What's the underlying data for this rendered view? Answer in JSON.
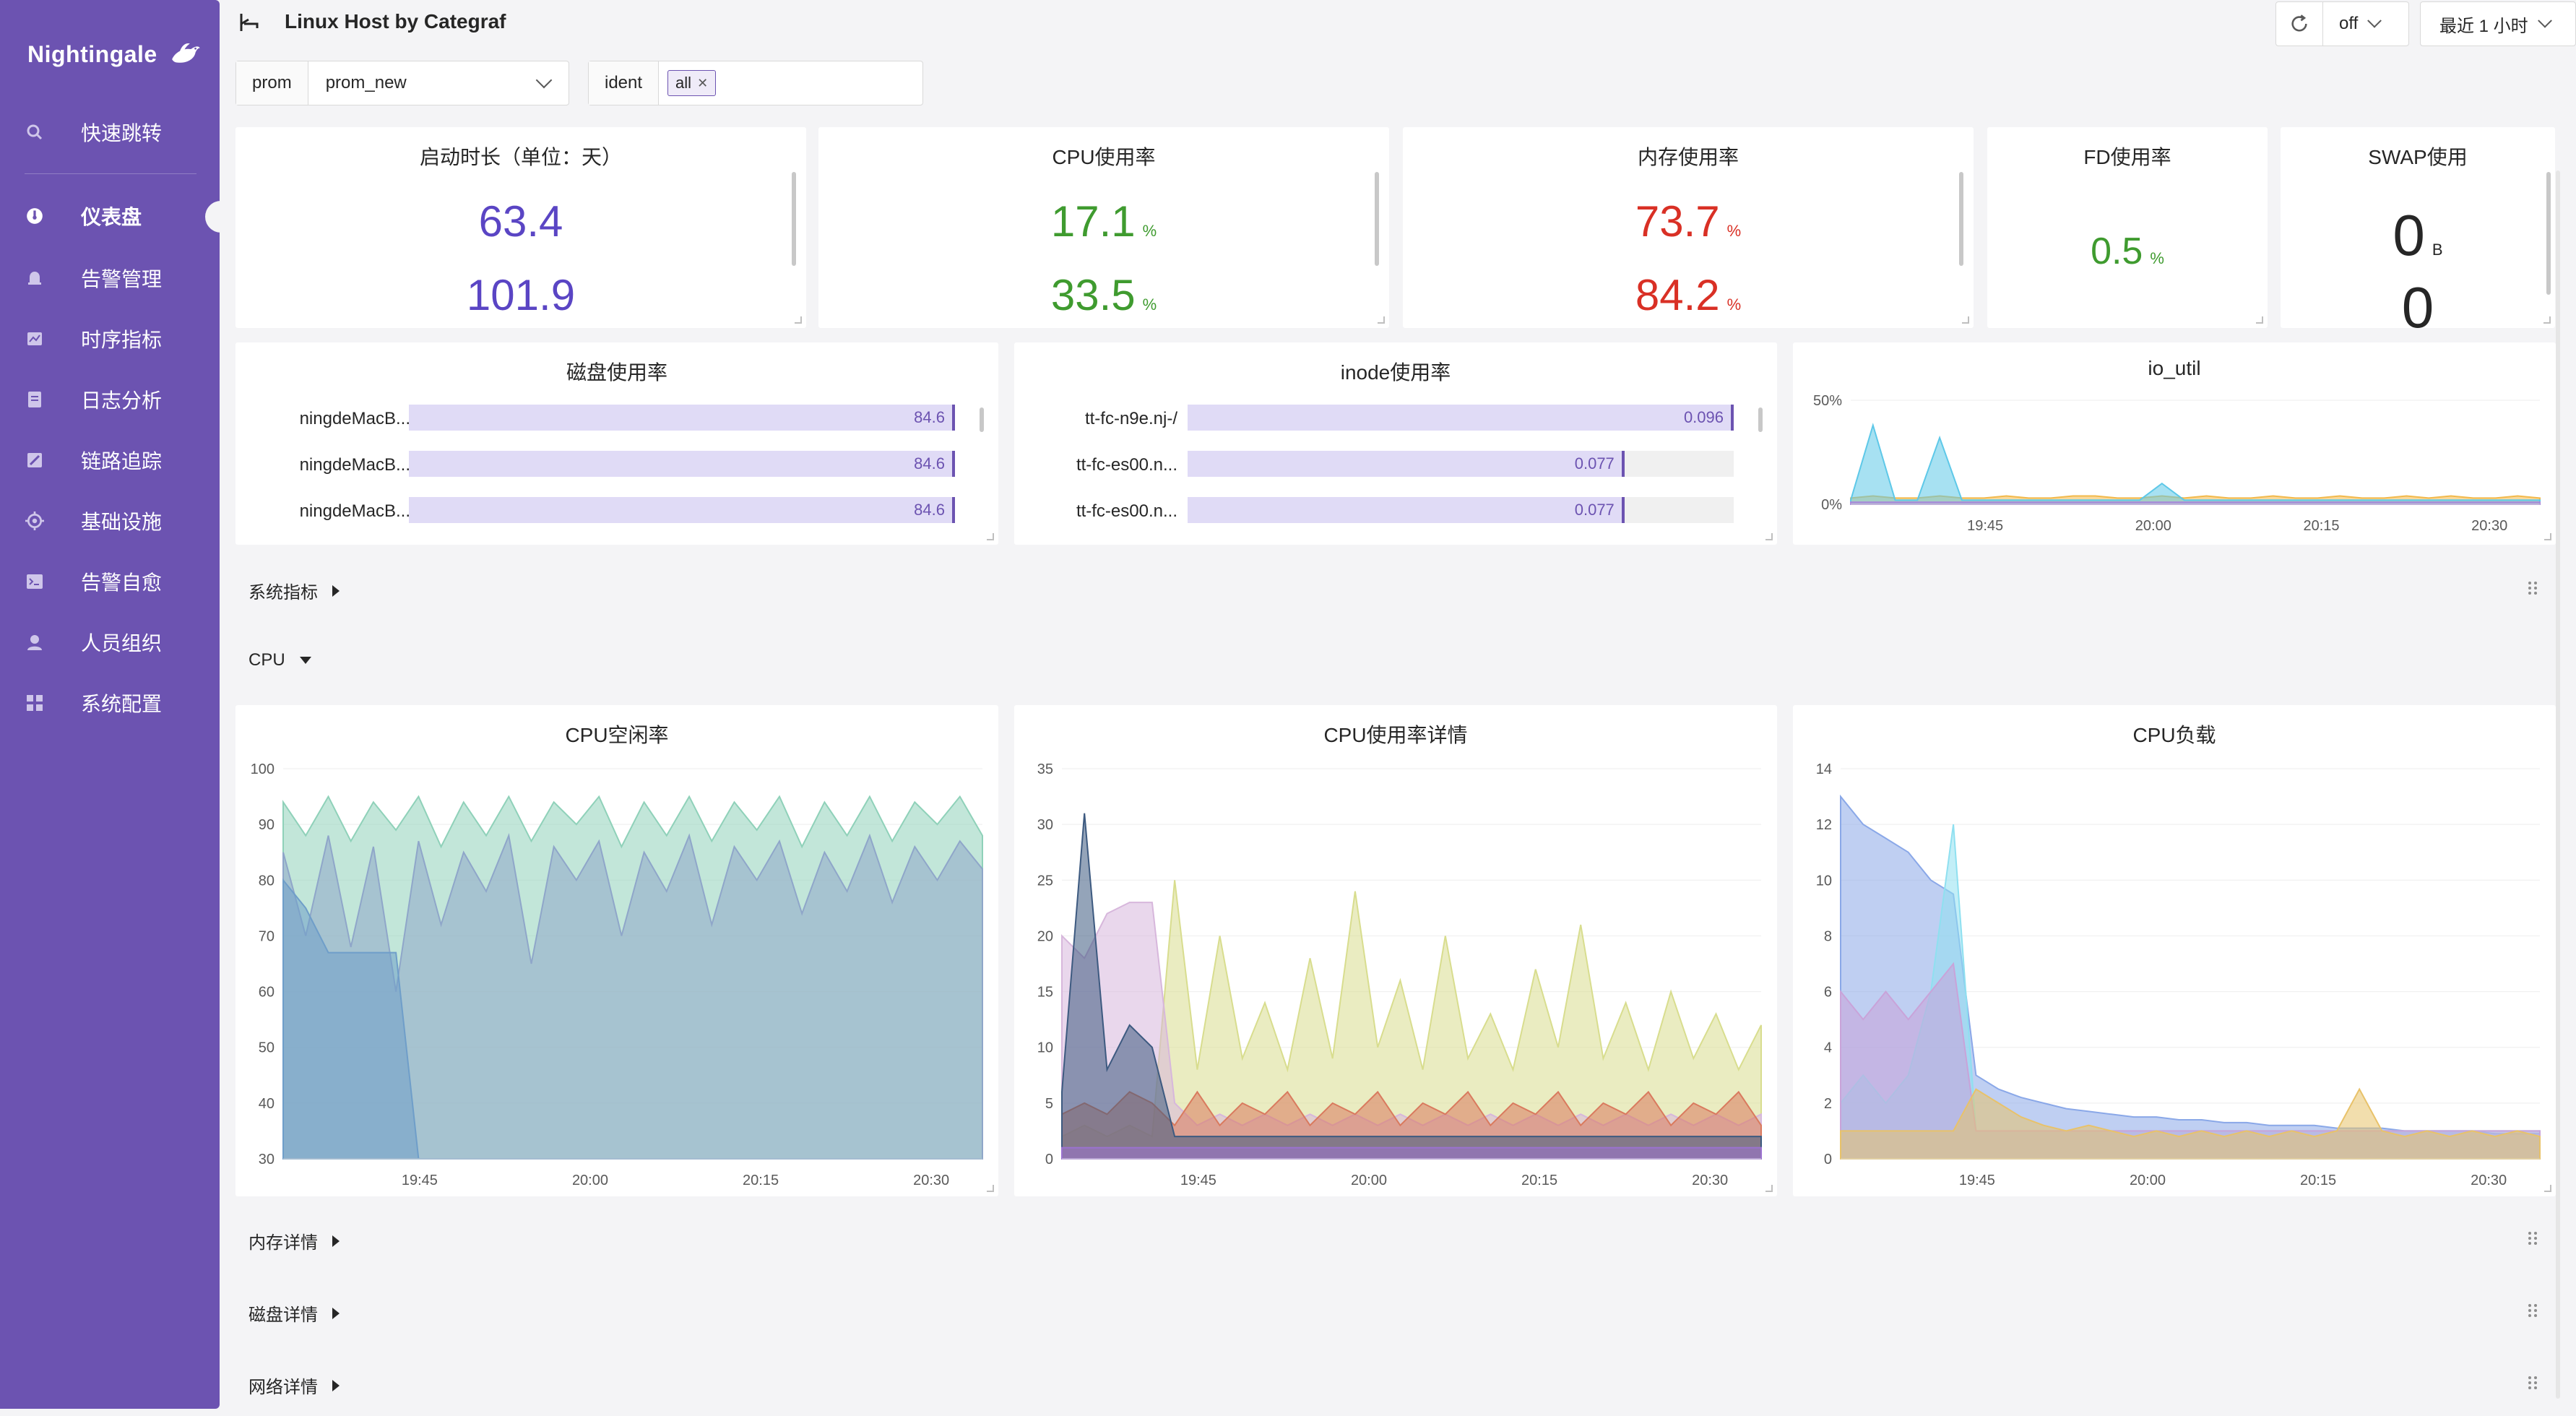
{
  "app": {
    "brand": "Nightingale",
    "logo_icon": "bird-logo-icon",
    "accent": "#6c53b1"
  },
  "sidebar": {
    "items": [
      {
        "label": "快速跳转",
        "icon": "search-icon"
      },
      {
        "label": "仪表盘",
        "icon": "dashboard-icon",
        "active": true
      },
      {
        "label": "告警管理",
        "icon": "bell-icon"
      },
      {
        "label": "时序指标",
        "icon": "line-chart-icon"
      },
      {
        "label": "日志分析",
        "icon": "document-icon"
      },
      {
        "label": "链路追踪",
        "icon": "trace-icon"
      },
      {
        "label": "基础设施",
        "icon": "target-icon"
      },
      {
        "label": "告警自愈",
        "icon": "terminal-icon"
      },
      {
        "label": "人员组织",
        "icon": "user-icon"
      },
      {
        "label": "系统配置",
        "icon": "apps-icon"
      }
    ]
  },
  "header": {
    "title": "Linux Host by Categraf",
    "refresh_value": "off",
    "time_range": "最近 1 小时"
  },
  "filters": {
    "prom": {
      "label": "prom",
      "value": "prom_new"
    },
    "ident": {
      "label": "ident",
      "tag": "all"
    }
  },
  "stats": [
    {
      "title": "启动时长（单位：天）",
      "values": [
        "63.4",
        "101.9"
      ],
      "unit": "",
      "color": "#5a45c4"
    },
    {
      "title": "CPU使用率",
      "values": [
        "17.1",
        "33.5"
      ],
      "unit": "%",
      "color": "#3f9b2f"
    },
    {
      "title": "内存使用率",
      "values": [
        "73.7",
        "84.2"
      ],
      "unit": "%",
      "color": "#d93025"
    },
    {
      "title": "FD使用率",
      "values": [
        "0.5"
      ],
      "unit": "%",
      "color": "#3f9b2f"
    },
    {
      "title": "SWAP使用",
      "values": [
        "0",
        "0"
      ],
      "unit": "B",
      "color": "#262626"
    }
  ],
  "disk_usage": {
    "title": "磁盘使用率",
    "rows": [
      {
        "label": "ningdeMacB...",
        "value": "84.6",
        "fraction": 1.0
      },
      {
        "label": "ningdeMacB...",
        "value": "84.6",
        "fraction": 1.0
      },
      {
        "label": "ningdeMacB...",
        "value": "84.6",
        "fraction": 1.0
      }
    ]
  },
  "inode_usage": {
    "title": "inode使用率",
    "rows": [
      {
        "label": "tt-fc-n9e.nj-/",
        "value": "0.096",
        "fraction": 1.0
      },
      {
        "label": "tt-fc-es00.n...",
        "value": "0.077",
        "fraction": 0.8
      },
      {
        "label": "tt-fc-es00.n...",
        "value": "0.077",
        "fraction": 0.8
      }
    ]
  },
  "sections": {
    "system": "系统指标",
    "cpu": "CPU",
    "memory": "内存详情",
    "disk": "磁盘详情",
    "network": "网络详情"
  },
  "chart_data": [
    {
      "title": "io_util",
      "type": "area",
      "x_ticks": [
        "19:45",
        "20:00",
        "20:15",
        "20:30"
      ],
      "y_ticks": [
        "50%",
        "0%"
      ],
      "ylim": [
        0,
        50
      ],
      "series": [
        {
          "color": "#f2b94b",
          "values": [
            3,
            4,
            3,
            3,
            4,
            3,
            3,
            4,
            3,
            3,
            4,
            4,
            3,
            3,
            4,
            3,
            4,
            3,
            3,
            4,
            3,
            3,
            4,
            3,
            3,
            4,
            3,
            4,
            3,
            3,
            4,
            3
          ]
        },
        {
          "color": "#5ec8e8",
          "values": [
            2,
            38,
            2,
            2,
            32,
            2,
            2,
            2,
            2,
            2,
            2,
            2,
            2,
            2,
            10,
            2,
            2,
            2,
            2,
            2,
            2,
            2,
            2,
            2,
            2,
            2,
            2,
            2,
            2,
            2,
            2,
            2
          ]
        },
        {
          "color": "#a88ad9",
          "values": [
            1,
            1,
            1,
            1,
            1,
            1,
            1,
            1,
            1,
            1,
            1,
            1,
            1,
            1,
            1,
            1,
            1,
            1,
            1,
            1,
            1,
            1,
            1,
            1,
            1,
            1,
            1,
            1,
            1,
            1,
            1,
            1
          ]
        }
      ]
    },
    {
      "title": "CPU空闲率",
      "type": "area",
      "x_ticks": [
        "19:45",
        "20:00",
        "20:15",
        "20:30"
      ],
      "y_ticks": [
        "100",
        "90",
        "80",
        "70",
        "60",
        "50",
        "40",
        "30"
      ],
      "ylim": [
        30,
        100
      ],
      "series": [
        {
          "color": "#8fd1b9",
          "values": [
            94,
            88,
            95,
            87,
            94,
            89,
            95,
            86,
            94,
            88,
            95,
            87,
            94,
            90,
            95,
            86,
            94,
            88,
            95,
            87,
            94,
            89,
            95,
            86,
            94,
            88,
            95,
            87,
            94,
            90,
            95,
            88
          ]
        },
        {
          "color": "#8fa6c9",
          "values": [
            85,
            70,
            88,
            68,
            86,
            60,
            87,
            72,
            85,
            78,
            88,
            65,
            86,
            80,
            87,
            70,
            85,
            78,
            88,
            72,
            86,
            80,
            87,
            74,
            85,
            78,
            88,
            76,
            86,
            80,
            87,
            82
          ]
        },
        {
          "color": "#6f9ec9",
          "values": [
            80,
            75,
            67,
            67,
            67,
            67,
            30,
            30,
            30,
            30,
            30,
            30,
            30,
            30,
            30,
            30,
            30,
            30,
            30,
            30,
            30,
            30,
            30,
            30,
            30,
            30,
            30,
            30,
            30,
            30,
            30,
            30
          ]
        }
      ]
    },
    {
      "title": "CPU使用率详情",
      "type": "area",
      "x_ticks": [
        "19:45",
        "20:00",
        "20:15",
        "20:30"
      ],
      "y_ticks": [
        "35",
        "30",
        "25",
        "20",
        "15",
        "10",
        "5",
        "0"
      ],
      "ylim": [
        0,
        35
      ],
      "series": [
        {
          "color": "#d8dd8e",
          "values": [
            2,
            3,
            2,
            3,
            2,
            25,
            8,
            20,
            9,
            14,
            8,
            18,
            9,
            24,
            10,
            16,
            8,
            20,
            9,
            13,
            8,
            17,
            10,
            21,
            9,
            14,
            8,
            15,
            9,
            13,
            8,
            12
          ]
        },
        {
          "color": "#d7b7dc",
          "values": [
            20,
            18,
            22,
            23,
            23,
            5,
            3,
            4,
            3,
            4,
            3,
            4,
            3,
            4,
            3,
            4,
            3,
            4,
            3,
            4,
            3,
            4,
            3,
            4,
            3,
            4,
            3,
            4,
            3,
            4,
            3,
            4
          ]
        },
        {
          "color": "#d97a5e",
          "values": [
            4,
            5,
            4,
            6,
            5,
            3,
            6,
            3,
            5,
            4,
            6,
            3,
            5,
            4,
            6,
            3,
            5,
            4,
            6,
            3,
            5,
            4,
            6,
            3,
            5,
            4,
            6,
            3,
            5,
            4,
            6,
            3
          ]
        },
        {
          "color": "#3d5a80",
          "values": [
            6,
            31,
            8,
            12,
            10,
            2,
            2,
            2,
            2,
            2,
            2,
            2,
            2,
            2,
            2,
            2,
            2,
            2,
            2,
            2,
            2,
            2,
            2,
            2,
            2,
            2,
            2,
            2,
            2,
            2,
            2,
            2
          ]
        },
        {
          "color": "#9b72cf",
          "values": [
            1,
            1,
            1,
            1,
            1,
            1,
            1,
            1,
            1,
            1,
            1,
            1,
            1,
            1,
            1,
            1,
            1,
            1,
            1,
            1,
            1,
            1,
            1,
            1,
            1,
            1,
            1,
            1,
            1,
            1,
            1,
            1
          ]
        }
      ]
    },
    {
      "title": "CPU负载",
      "type": "area",
      "x_ticks": [
        "19:45",
        "20:00",
        "20:15",
        "20:30"
      ],
      "y_ticks": [
        "14",
        "12",
        "10",
        "8",
        "6",
        "4",
        "2",
        "0"
      ],
      "ylim": [
        0,
        14
      ],
      "series": [
        {
          "color": "#8aa8e8",
          "values": [
            13,
            12,
            11.5,
            11,
            10,
            9.5,
            3,
            2.5,
            2.2,
            2,
            1.8,
            1.7,
            1.6,
            1.5,
            1.5,
            1.4,
            1.4,
            1.3,
            1.3,
            1.2,
            1.2,
            1.2,
            1.1,
            1.1,
            1.1,
            1.0,
            1.0,
            1.0,
            1.0,
            0.9,
            0.9,
            0.9
          ]
        },
        {
          "color": "#8fe0f0",
          "values": [
            2,
            3,
            2,
            3,
            6,
            12,
            1,
            1,
            1,
            1,
            1,
            1,
            1,
            1,
            1,
            1,
            1,
            1,
            1,
            1,
            1,
            1,
            1,
            1,
            1,
            1,
            1,
            1,
            1,
            1,
            1,
            1
          ]
        },
        {
          "color": "#c9a3d9",
          "values": [
            6,
            5,
            6,
            5,
            6,
            7,
            1,
            1,
            1,
            1,
            1,
            1,
            1,
            1,
            1,
            1,
            1,
            1,
            1,
            1,
            1,
            1,
            1,
            1,
            1,
            1,
            1,
            1,
            1,
            1,
            1,
            1
          ]
        },
        {
          "color": "#e8c26a",
          "values": [
            1,
            1,
            1,
            1,
            1,
            1,
            2.5,
            2,
            1.5,
            1.2,
            1,
            1.2,
            1,
            0.8,
            1,
            0.8,
            1,
            0.8,
            1,
            0.8,
            1,
            0.8,
            1,
            2.5,
            1,
            0.8,
            1,
            0.8,
            1,
            0.8,
            1,
            0.8
          ]
        }
      ]
    }
  ]
}
